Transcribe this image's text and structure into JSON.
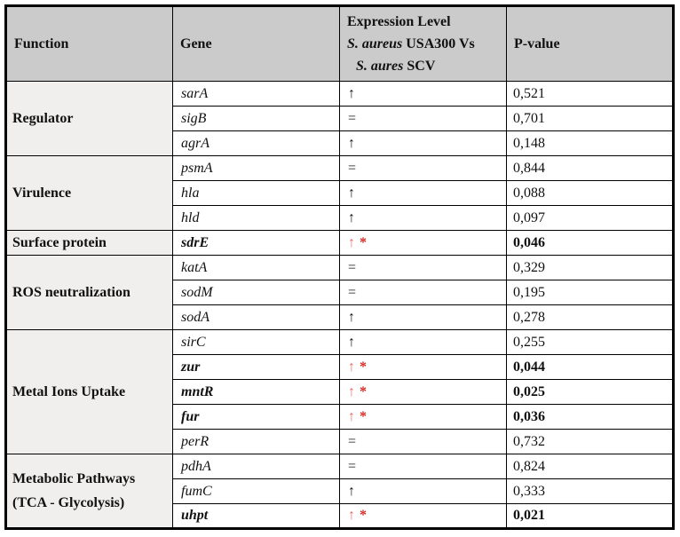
{
  "table": {
    "headers": {
      "function": "Function",
      "gene": "Gene",
      "expression_line1": "Expression Level",
      "expression_line2_species": "S. aureus",
      "expression_line2_rest": " USA300 Vs",
      "expression_line3_species": "S. aures",
      "expression_line3_rest": " SCV",
      "pvalue": "P-value"
    },
    "symbols": {
      "up": "↑",
      "equal": "=",
      "asterisk": "*"
    },
    "colors": {
      "header_bg": "#cbcbcb",
      "function_col_bg": "#f0efed",
      "cell_bg": "#ffffff",
      "border": "#000000",
      "text": "#111111",
      "significant_arrow_red": "#ec6a64",
      "significant_asterisk_red": "#d42a24"
    },
    "groups": [
      {
        "function_lines": [
          "Regulator"
        ],
        "rows": [
          {
            "gene": "sarA",
            "expression": "up",
            "significant": false,
            "pvalue": "0,521"
          },
          {
            "gene": "sigB",
            "expression": "equal",
            "significant": false,
            "pvalue": "0,701"
          },
          {
            "gene": "agrA",
            "expression": "up",
            "significant": false,
            "pvalue": "0,148"
          }
        ]
      },
      {
        "function_lines": [
          "Virulence"
        ],
        "rows": [
          {
            "gene": "psmA",
            "expression": "equal",
            "significant": false,
            "pvalue": "0,844"
          },
          {
            "gene": "hla",
            "expression": "up",
            "significant": false,
            "pvalue": "0,088"
          },
          {
            "gene": "hld",
            "expression": "up",
            "significant": false,
            "pvalue": "0,097"
          }
        ]
      },
      {
        "function_lines": [
          "Surface protein"
        ],
        "rows": [
          {
            "gene": "sdrE",
            "expression": "up",
            "significant": true,
            "pvalue": "0,046"
          }
        ]
      },
      {
        "function_lines": [
          "ROS neutralization"
        ],
        "rows": [
          {
            "gene": "katA",
            "expression": "equal",
            "significant": false,
            "pvalue": "0,329"
          },
          {
            "gene": "sodM",
            "expression": "equal",
            "significant": false,
            "pvalue": "0,195"
          },
          {
            "gene": "sodA",
            "expression": "up",
            "significant": false,
            "pvalue": "0,278"
          }
        ]
      },
      {
        "function_lines": [
          "Metal Ions Uptake"
        ],
        "rows": [
          {
            "gene": "sirC",
            "expression": "up",
            "significant": false,
            "pvalue": "0,255"
          },
          {
            "gene": "zur",
            "expression": "up",
            "significant": true,
            "pvalue": "0,044"
          },
          {
            "gene": "mntR",
            "expression": "up",
            "significant": true,
            "pvalue": "0,025"
          },
          {
            "gene": "fur",
            "expression": "up",
            "significant": true,
            "pvalue": "0,036"
          },
          {
            "gene": "perR",
            "expression": "equal",
            "significant": false,
            "pvalue": "0,732"
          }
        ]
      },
      {
        "function_lines": [
          "Metabolic Pathways",
          "(TCA - Glycolysis)"
        ],
        "rows": [
          {
            "gene": "pdhA",
            "expression": "equal",
            "significant": false,
            "pvalue": "0,824"
          },
          {
            "gene": "fumC",
            "expression": "up",
            "significant": false,
            "pvalue": "0,333"
          },
          {
            "gene": "uhpt",
            "expression": "up",
            "significant": true,
            "pvalue": "0,021"
          }
        ]
      }
    ]
  }
}
